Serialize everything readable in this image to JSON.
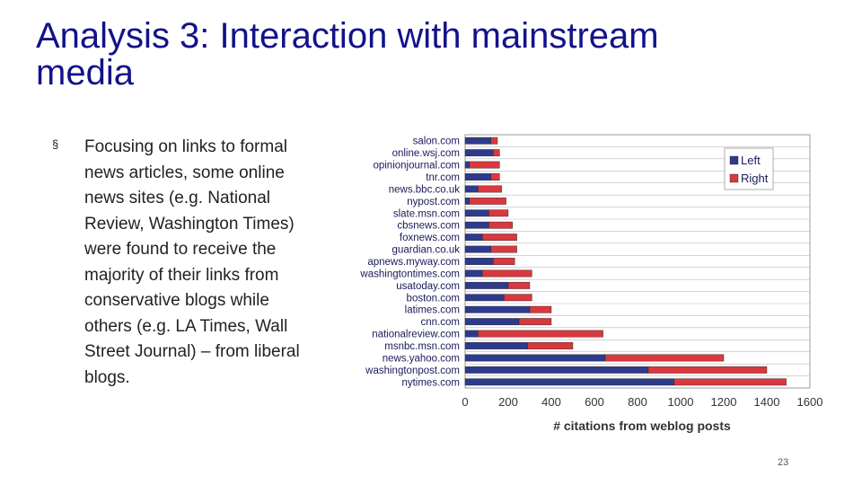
{
  "slide": {
    "title": "Analysis 3: Interaction with mainstream media",
    "bullet_marker": "§",
    "bullet_text": "Focusing on links to formal news articles, some online news sites (e.g. National Review, Washington Times) were found to receive the majority of their links from conservative blogs while others (e.g. LA Times, Wall Street Journal) – from liberal blogs.",
    "page_number": "23"
  },
  "colors": {
    "title": "#12128a",
    "left": "#2e3a8c",
    "right": "#d8383e"
  },
  "chart_data": {
    "type": "bar",
    "orientation": "horizontal",
    "stacked": true,
    "xlabel": "# citations from weblog posts",
    "ylabel": "",
    "xlim": [
      0,
      1600
    ],
    "xticks": [
      0,
      200,
      400,
      600,
      800,
      1000,
      1200,
      1400,
      1600
    ],
    "grid": true,
    "legend_position": "top-right",
    "categories": [
      "salon.com",
      "online.wsj.com",
      "opinionjournal.com",
      "tnr.com",
      "news.bbc.co.uk",
      "nypost.com",
      "slate.msn.com",
      "cbsnews.com",
      "foxnews.com",
      "guardian.co.uk",
      "apnews.myway.com",
      "washingtontimes.com",
      "usatoday.com",
      "boston.com",
      "latimes.com",
      "cnn.com",
      "nationalreview.com",
      "msnbc.msn.com",
      "news.yahoo.com",
      "washingtonpost.com",
      "nytimes.com"
    ],
    "series": [
      {
        "name": "Left",
        "values": [
          120,
          130,
          20,
          120,
          60,
          20,
          110,
          110,
          80,
          120,
          130,
          80,
          200,
          180,
          300,
          250,
          60,
          290,
          650,
          850,
          970
        ]
      },
      {
        "name": "Right",
        "values": [
          30,
          30,
          140,
          40,
          110,
          170,
          90,
          110,
          160,
          120,
          100,
          230,
          100,
          130,
          100,
          150,
          580,
          210,
          550,
          550,
          520
        ]
      }
    ]
  }
}
